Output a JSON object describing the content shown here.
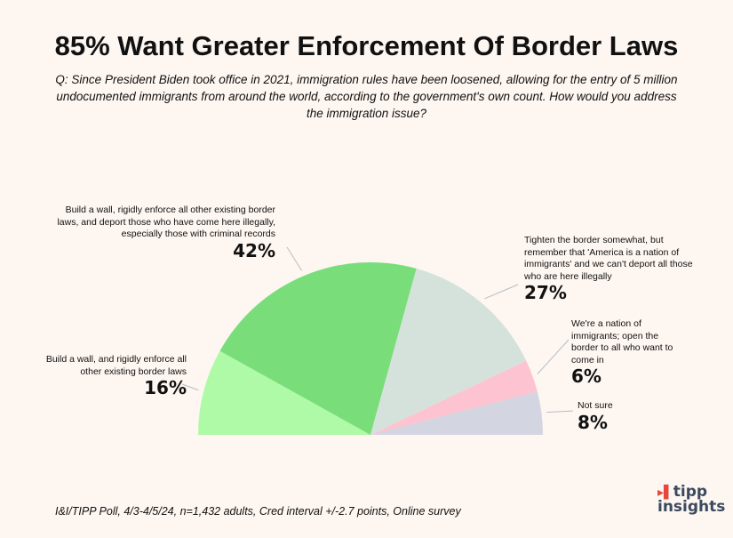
{
  "chart_data": {
    "type": "pie",
    "variant": "half-donut-semicircle",
    "title": "85% Want Greater Enforcement Of Border Laws",
    "subtitle": "Q: Since President Biden took office in 2021, immigration rules have been loosened, allowing for the entry of 5 million undocumented immigrants from around the world, according to the government's own count. How would you address the immigration issue?",
    "slices": [
      {
        "label": "Build a wall, and rigidly enforce all other existing border laws",
        "value": 16,
        "value_label": "16%",
        "color": "#aefaa6"
      },
      {
        "label": "Build a wall, rigidly enforce all other existing border laws, and deport those who have come here illegally, especially those with criminal records",
        "value": 42,
        "value_label": "42%",
        "color": "#79dd7a"
      },
      {
        "label": "Tighten the border somewhat, but remember that 'America is a nation of immigrants' and we can't deport all those who are here illegally",
        "value": 27,
        "value_label": "27%",
        "color": "#d5e2dc"
      },
      {
        "label": "We're a nation of immigrants; open the border to all who want to come in",
        "value": 6,
        "value_label": "6%",
        "color": "#fdc3d1"
      },
      {
        "label": "Not sure",
        "value": 8,
        "value_label": "8%",
        "color": "#d3d5e0"
      }
    ]
  },
  "footer": "I&I/TIPP Poll, 4/3-4/5/24, n=1,432 adults, Cred interval +/-2.7 points, Online survey",
  "logo": {
    "line1": "tipp",
    "line2": "insights"
  }
}
